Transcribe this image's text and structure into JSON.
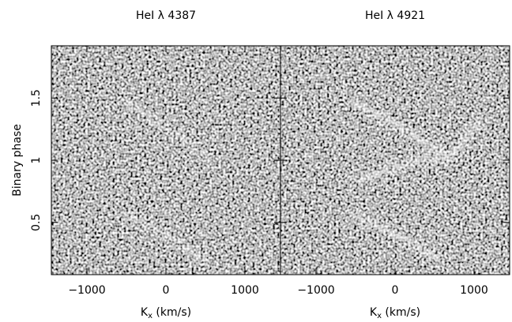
{
  "chart_data": [
    {
      "type": "heatmap",
      "title": "HeI λ 4387",
      "xlabel": [
        "K",
        "x",
        " (km/s)"
      ],
      "ylabel": "Binary phase",
      "xlim": [
        -1450,
        1450
      ],
      "xticks": [
        {
          "value": -1000,
          "label": "−1000"
        },
        0,
        1000
      ],
      "ylim": [
        0.08,
        1.92
      ],
      "yticks": [
        0.5,
        1,
        1.5
      ]
    },
    {
      "type": "heatmap",
      "title": "HeI λ 4921",
      "xlabel": [
        "K",
        "x",
        " (km/s)"
      ],
      "xlim": [
        -1450,
        1450
      ],
      "xticks": [
        {
          "value": -1000,
          "label": "−1000"
        },
        0,
        1000
      ],
      "ylim": [
        0.08,
        1.92
      ],
      "yticks": [
        0.5,
        1,
        1.5
      ]
    }
  ]
}
